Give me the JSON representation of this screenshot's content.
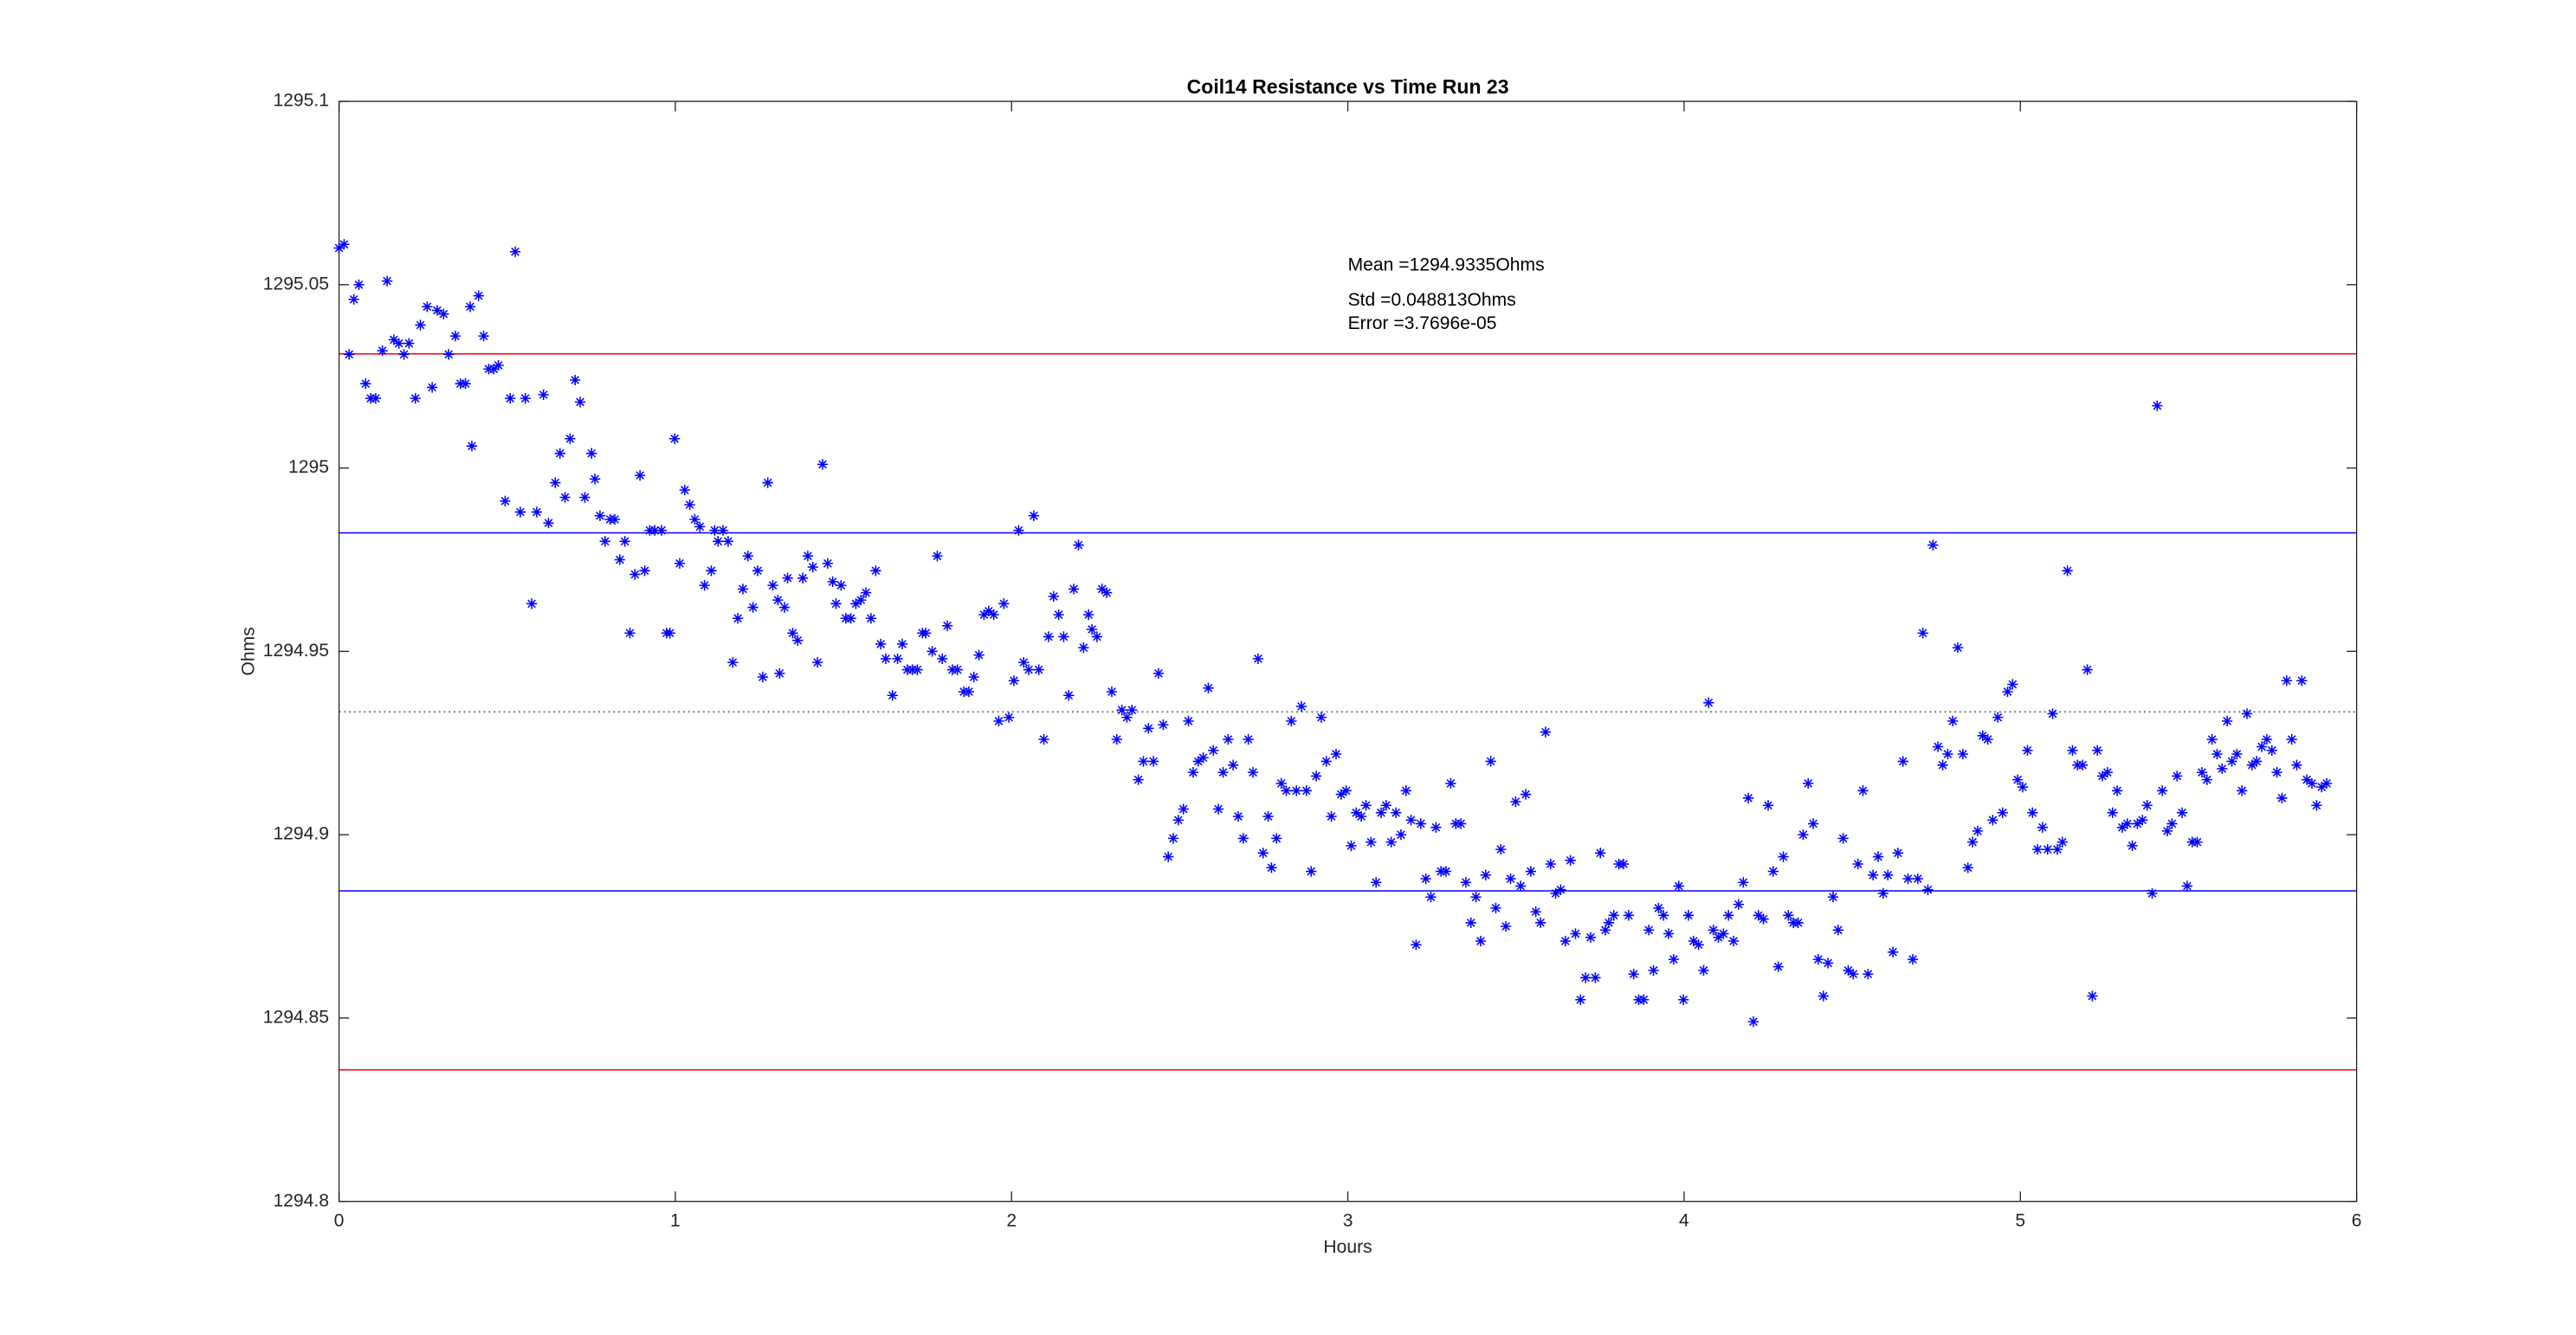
{
  "chart_data": {
    "type": "scatter",
    "title": "Coil14 Resistance vs Time Run 23",
    "x_label": "Hours",
    "y_label": "Ohms",
    "annotations": [
      "Mean =1294.9335Ohms",
      "Std =0.048813Ohms",
      "Error =3.7696e-05"
    ],
    "xlim": [
      0,
      6
    ],
    "ylim": [
      1294.8,
      1295.1
    ],
    "xticks": [
      0,
      1,
      2,
      3,
      4,
      5,
      6
    ],
    "yticks": [
      1294.8,
      1294.85,
      1294.9,
      1294.95,
      1295,
      1295.05,
      1295.1
    ],
    "grid": false,
    "marker": "*",
    "color": "#0000ff",
    "reference_lines": [
      {
        "value": 1295.031126,
        "color": "#ff0000",
        "style": "solid"
      },
      {
        "value": 1294.982313,
        "color": "#0000ff",
        "style": "solid"
      },
      {
        "value": 1294.9335,
        "color": "#555555",
        "style": "dotted"
      },
      {
        "value": 1294.884687,
        "color": "#0000ff",
        "style": "solid"
      },
      {
        "value": 1294.835874,
        "color": "#ff0000",
        "style": "solid"
      }
    ],
    "x": [
      0,
      0.015,
      0.03,
      0.044,
      0.059,
      0.079,
      0.094,
      0.109,
      0.129,
      0.143,
      0.163,
      0.178,
      0.193,
      0.208,
      0.227,
      0.242,
      0.262,
      0.277,
      0.292,
      0.311,
      0.326,
      0.346,
      0.361,
      0.376,
      0.39,
      0.395,
      0.415,
      0.43,
      0.445,
      0.46,
      0.474,
      0.494,
      0.509,
      0.524,
      0.539,
      0.554,
      0.573,
      0.588,
      0.608,
      0.623,
      0.643,
      0.657,
      0.672,
      0.687,
      0.702,
      0.717,
      0.731,
      0.751,
      0.761,
      0.776,
      0.791,
      0.806,
      0.82,
      0.835,
      0.85,
      0.865,
      0.88,
      0.895,
      0.909,
      0.924,
      0.939,
      0.959,
      0.974,
      0.984,
      0.998,
      1.013,
      1.028,
      1.043,
      1.058,
      1.073,
      1.087,
      1.107,
      1.117,
      1.127,
      1.142,
      1.157,
      1.171,
      1.186,
      1.201,
      1.216,
      1.231,
      1.245,
      1.26,
      1.275,
      1.29,
      1.305,
      1.31,
      1.325,
      1.334,
      1.349,
      1.364,
      1.379,
      1.394,
      1.409,
      1.423,
      1.438,
      1.453,
      1.468,
      1.478,
      1.493,
      1.507,
      1.522,
      1.537,
      1.552,
      1.567,
      1.582,
      1.596,
      1.611,
      1.626,
      1.646,
      1.661,
      1.675,
      1.69,
      1.705,
      1.72,
      1.735,
      1.745,
      1.764,
      1.779,
      1.794,
      1.809,
      1.824,
      1.839,
      1.858,
      1.873,
      1.888,
      1.903,
      1.918,
      1.932,
      1.947,
      1.962,
      1.977,
      1.992,
      2.007,
      2.021,
      2.036,
      2.051,
      2.066,
      2.081,
      2.096,
      2.11,
      2.125,
      2.14,
      2.155,
      2.17,
      2.185,
      2.199,
      2.214,
      2.229,
      2.239,
      2.254,
      2.269,
      2.283,
      2.298,
      2.313,
      2.328,
      2.343,
      2.358,
      2.377,
      2.392,
      2.407,
      2.422,
      2.437,
      2.451,
      2.466,
      2.481,
      2.496,
      2.511,
      2.526,
      2.54,
      2.555,
      2.57,
      2.585,
      2.6,
      2.615,
      2.629,
      2.644,
      2.659,
      2.674,
      2.689,
      2.704,
      2.718,
      2.733,
      2.748,
      2.763,
      2.773,
      2.788,
      2.802,
      2.817,
      2.832,
      2.847,
      2.862,
      2.877,
      2.891,
      2.906,
      2.921,
      2.936,
      2.951,
      2.965,
      2.98,
      2.995,
      3.01,
      3.025,
      3.04,
      3.054,
      3.069,
      3.084,
      3.099,
      3.114,
      3.129,
      3.143,
      3.158,
      3.173,
      3.188,
      3.203,
      3.217,
      3.232,
      3.247,
      3.262,
      3.277,
      3.292,
      3.306,
      3.321,
      3.336,
      3.351,
      3.366,
      3.381,
      3.395,
      3.41,
      3.425,
      3.44,
      3.455,
      3.47,
      3.484,
      3.499,
      3.514,
      3.529,
      3.544,
      3.559,
      3.573,
      3.588,
      3.603,
      3.618,
      3.633,
      3.647,
      3.662,
      3.677,
      3.692,
      3.707,
      3.722,
      3.736,
      3.751,
      3.766,
      3.776,
      3.791,
      3.806,
      3.82,
      3.835,
      3.85,
      3.865,
      3.88,
      3.895,
      3.909,
      3.924,
      3.939,
      3.954,
      3.969,
      3.984,
      3.998,
      4.013,
      4.028,
      4.043,
      4.058,
      4.073,
      4.087,
      4.102,
      4.117,
      4.132,
      4.147,
      4.162,
      4.176,
      4.191,
      4.206,
      4.221,
      4.236,
      4.25,
      4.265,
      4.28,
      4.295,
      4.31,
      4.325,
      4.339,
      4.354,
      4.369,
      4.384,
      4.399,
      4.414,
      4.428,
      4.443,
      4.458,
      4.473,
      4.488,
      4.503,
      4.517,
      4.532,
      4.547,
      4.562,
      4.577,
      4.592,
      4.606,
      4.621,
      4.636,
      4.651,
      4.666,
      4.68,
      4.695,
      4.71,
      4.725,
      4.74,
      4.755,
      4.769,
      4.784,
      4.799,
      4.814,
      4.829,
      4.844,
      4.858,
      4.873,
      4.888,
      4.903,
      4.918,
      4.933,
      4.947,
      4.962,
      4.977,
      4.992,
      5.007,
      5.021,
      5.036,
      5.051,
      5.066,
      5.081,
      5.096,
      5.11,
      5.125,
      5.14,
      5.155,
      5.17,
      5.185,
      5.199,
      5.214,
      5.229,
      5.244,
      5.259,
      5.274,
      5.288,
      5.303,
      5.318,
      5.333,
      5.348,
      5.363,
      5.377,
      5.392,
      5.407,
      5.422,
      5.437,
      5.451,
      5.466,
      5.481,
      5.496,
      5.511,
      5.526,
      5.54,
      5.555,
      5.57,
      5.585,
      5.6,
      5.615,
      5.629,
      5.644,
      5.659,
      5.674,
      5.689,
      5.703,
      5.718,
      5.733,
      5.748,
      5.763,
      5.778,
      5.792,
      5.807,
      5.822,
      5.837,
      5.852,
      5.867,
      5.881,
      5.896,
      5.911
    ],
    "values": [
      1295.06,
      1295.061,
      1295.031,
      1295.046,
      1295.05,
      1295.023,
      1295.019,
      1295.019,
      1295.032,
      1295.051,
      1295.035,
      1295.034,
      1295.031,
      1295.034,
      1295.019,
      1295.039,
      1295.044,
      1295.022,
      1295.043,
      1295.042,
      1295.031,
      1295.036,
      1295.023,
      1295.023,
      1295.044,
      1295.006,
      1295.047,
      1295.036,
      1295.027,
      1295.027,
      1295.028,
      1294.991,
      1295.019,
      1295.059,
      1294.988,
      1295.019,
      1294.963,
      1294.988,
      1295.02,
      1294.985,
      1294.996,
      1295.004,
      1294.992,
      1295.008,
      1295.024,
      1295.018,
      1294.992,
      1295.004,
      1294.997,
      1294.987,
      1294.98,
      1294.986,
      1294.986,
      1294.975,
      1294.98,
      1294.955,
      1294.971,
      1294.998,
      1294.972,
      1294.983,
      1294.983,
      1294.983,
      1294.955,
      1294.955,
      1295.008,
      1294.974,
      1294.994,
      1294.99,
      1294.986,
      1294.984,
      1294.968,
      1294.972,
      1294.983,
      1294.98,
      1294.983,
      1294.98,
      1294.947,
      1294.959,
      1294.967,
      1294.976,
      1294.962,
      1294.972,
      1294.943,
      1294.996,
      1294.968,
      1294.964,
      1294.944,
      1294.962,
      1294.97,
      1294.955,
      1294.953,
      1294.97,
      1294.976,
      1294.973,
      1294.947,
      1295.001,
      1294.974,
      1294.969,
      1294.963,
      1294.968,
      1294.959,
      1294.959,
      1294.963,
      1294.964,
      1294.966,
      1294.959,
      1294.972,
      1294.952,
      1294.948,
      1294.938,
      1294.948,
      1294.952,
      1294.945,
      1294.945,
      1294.945,
      1294.955,
      1294.955,
      1294.95,
      1294.976,
      1294.948,
      1294.957,
      1294.945,
      1294.945,
      1294.939,
      1294.939,
      1294.943,
      1294.949,
      1294.96,
      1294.961,
      1294.96,
      1294.931,
      1294.963,
      1294.932,
      1294.942,
      1294.983,
      1294.947,
      1294.945,
      1294.987,
      1294.945,
      1294.926,
      1294.954,
      1294.965,
      1294.96,
      1294.954,
      1294.938,
      1294.967,
      1294.979,
      1294.951,
      1294.96,
      1294.956,
      1294.954,
      1294.967,
      1294.966,
      1294.939,
      1294.926,
      1294.934,
      1294.932,
      1294.934,
      1294.915,
      1294.92,
      1294.929,
      1294.92,
      1294.944,
      1294.93,
      1294.894,
      1294.899,
      1294.904,
      1294.907,
      1294.931,
      1294.917,
      1294.92,
      1294.921,
      1294.94,
      1294.923,
      1294.907,
      1294.917,
      1294.926,
      1294.919,
      1294.905,
      1294.899,
      1294.926,
      1294.917,
      1294.948,
      1294.895,
      1294.905,
      1294.891,
      1294.899,
      1294.914,
      1294.912,
      1294.931,
      1294.912,
      1294.935,
      1294.912,
      1294.89,
      1294.916,
      1294.932,
      1294.92,
      1294.905,
      1294.922,
      1294.911,
      1294.912,
      1294.897,
      1294.906,
      1294.905,
      1294.908,
      1294.898,
      1294.887,
      1294.906,
      1294.908,
      1294.898,
      1294.906,
      1294.9,
      1294.912,
      1294.904,
      1294.87,
      1294.903,
      1294.888,
      1294.883,
      1294.902,
      1294.89,
      1294.89,
      1294.914,
      1294.903,
      1294.903,
      1294.887,
      1294.876,
      1294.883,
      1294.871,
      1294.889,
      1294.92,
      1294.88,
      1294.896,
      1294.875,
      1294.888,
      1294.909,
      1294.886,
      1294.911,
      1294.89,
      1294.879,
      1294.876,
      1294.928,
      1294.892,
      1294.884,
      1294.885,
      1294.871,
      1294.893,
      1294.873,
      1294.855,
      1294.861,
      1294.872,
      1294.861,
      1294.895,
      1294.874,
      1294.876,
      1294.878,
      1294.892,
      1294.892,
      1294.878,
      1294.862,
      1294.855,
      1294.855,
      1294.874,
      1294.863,
      1294.88,
      1294.878,
      1294.873,
      1294.866,
      1294.886,
      1294.855,
      1294.878,
      1294.871,
      1294.87,
      1294.863,
      1294.936,
      1294.874,
      1294.872,
      1294.873,
      1294.878,
      1294.871,
      1294.881,
      1294.887,
      1294.91,
      1294.849,
      1294.878,
      1294.877,
      1294.908,
      1294.89,
      1294.864,
      1294.894,
      1294.878,
      1294.876,
      1294.876,
      1294.9,
      1294.914,
      1294.903,
      1294.866,
      1294.856,
      1294.865,
      1294.883,
      1294.874,
      1294.899,
      1294.863,
      1294.862,
      1294.892,
      1294.912,
      1294.862,
      1294.889,
      1294.894,
      1294.884,
      1294.889,
      1294.868,
      1294.895,
      1294.92,
      1294.888,
      1294.866,
      1294.888,
      1294.955,
      1294.885,
      1294.979,
      1294.924,
      1294.919,
      1294.922,
      1294.931,
      1294.951,
      1294.922,
      1294.891,
      1294.898,
      1294.901,
      1294.927,
      1294.926,
      1294.904,
      1294.932,
      1294.906,
      1294.939,
      1294.941,
      1294.915,
      1294.913,
      1294.923,
      1294.906,
      1294.896,
      1294.902,
      1294.896,
      1294.933,
      1294.896,
      1294.898,
      1294.972,
      1294.923,
      1294.919,
      1294.919,
      1294.945,
      1294.856,
      1294.923,
      1294.916,
      1294.917,
      1294.906,
      1294.912,
      1294.902,
      1294.903,
      1294.897,
      1294.903,
      1294.904,
      1294.908,
      1294.884,
      1295.017,
      1294.912,
      1294.901,
      1294.903,
      1294.916,
      1294.906,
      1294.886,
      1294.898,
      1294.898,
      1294.917,
      1294.915,
      1294.926,
      1294.922,
      1294.918,
      1294.931,
      1294.92,
      1294.922,
      1294.912,
      1294.933,
      1294.919,
      1294.92,
      1294.924,
      1294.926,
      1294.923,
      1294.917,
      1294.91,
      1294.942,
      1294.926,
      1294.919,
      1294.942,
      1294.915,
      1294.914,
      1294.908,
      1294.913,
      1294.914
    ]
  }
}
